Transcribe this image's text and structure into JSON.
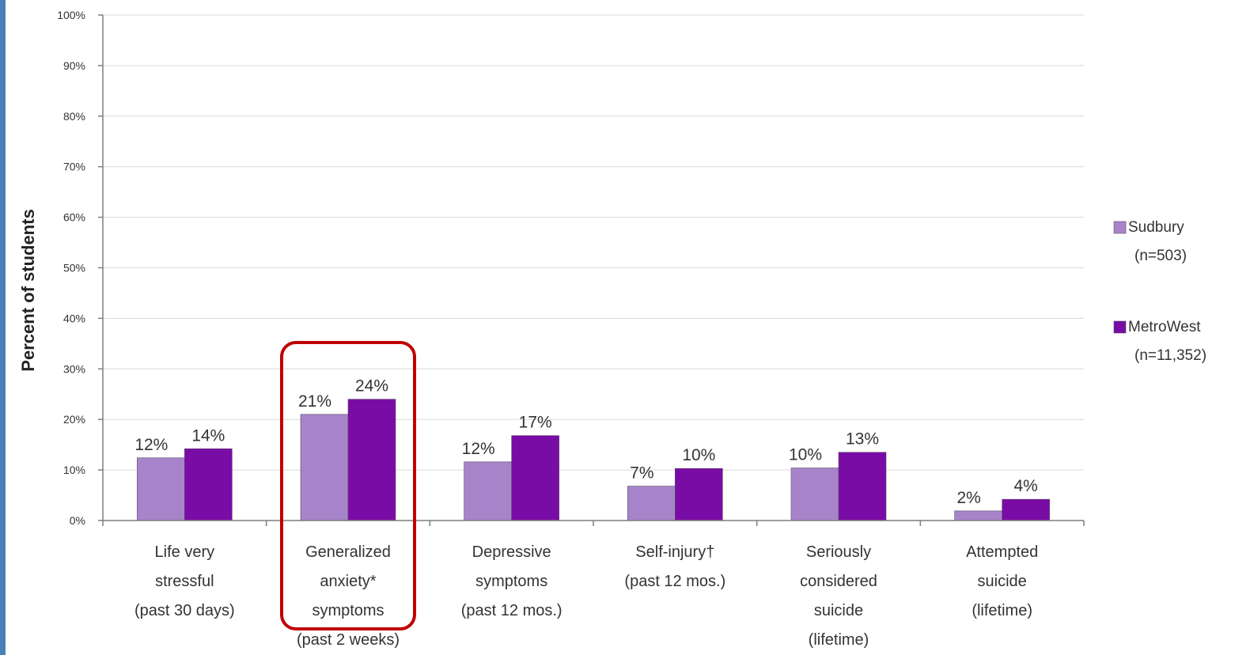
{
  "chart_data": {
    "type": "bar",
    "ylabel": "Percent of students",
    "xlabel": "",
    "title": "",
    "ylim": [
      0,
      100
    ],
    "yticks": [
      "0%",
      "10%",
      "20%",
      "30%",
      "40%",
      "50%",
      "60%",
      "70%",
      "80%",
      "90%",
      "100%"
    ],
    "grid": true,
    "legend_position": "right",
    "categories": [
      [
        "Life very",
        "stressful",
        "(past 30 days)"
      ],
      [
        "Generalized",
        "anxiety*",
        "symptoms",
        "(past 2 weeks)"
      ],
      [
        "Depressive",
        "symptoms",
        "(past 12 mos.)"
      ],
      [
        "Self-injury†",
        "(past 12 mos.)"
      ],
      [
        "Seriously",
        "considered",
        "suicide",
        "(lifetime)"
      ],
      [
        "Attempted",
        "suicide",
        "(lifetime)"
      ]
    ],
    "series": [
      {
        "name": "Sudbury",
        "name_line2": "(n=503)",
        "color": "#a784c9",
        "values": [
          12.4,
          21,
          11.6,
          6.8,
          10.4,
          1.9
        ],
        "labels": [
          "12%",
          "21%",
          "12%",
          "7%",
          "10%",
          "2%"
        ]
      },
      {
        "name": "MetroWest",
        "name_line2": "(n=11,352)",
        "color": "#7a0ca6",
        "values": [
          14.2,
          24,
          16.8,
          10.3,
          13.5,
          4.2
        ],
        "labels": [
          "14%",
          "24%",
          "17%",
          "10%",
          "13%",
          "4%"
        ]
      }
    ],
    "highlight": {
      "category_index": 1,
      "color": "#c00000"
    }
  }
}
